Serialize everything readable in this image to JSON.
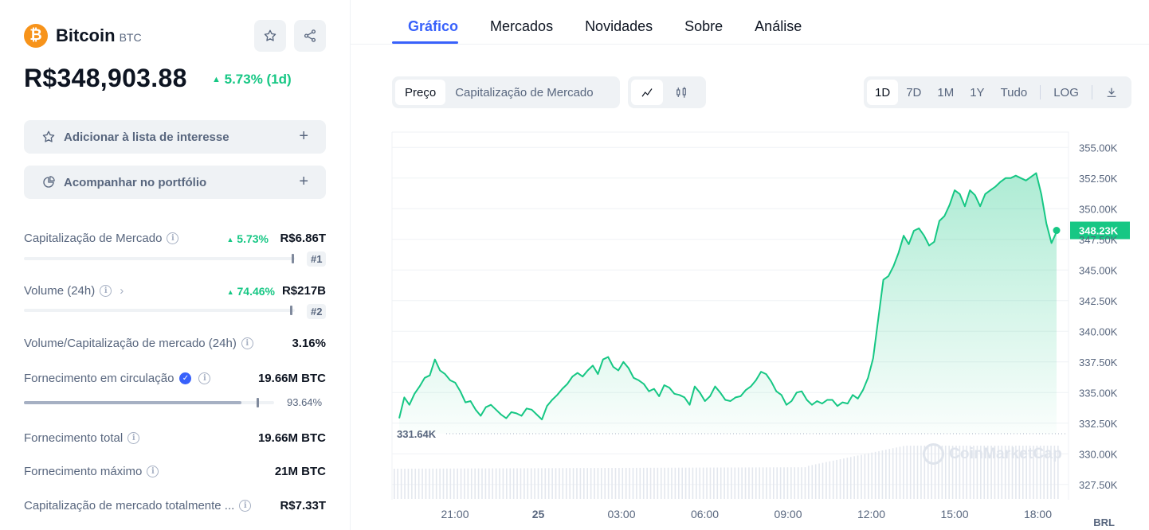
{
  "coin": {
    "name": "Bitcoin",
    "symbol": "BTC",
    "logo_glyph": "₿",
    "price": "R$348,903.88",
    "change": "5.73% (1d)"
  },
  "actions": {
    "watchlist_label": "Adicionar à lista de interesse",
    "portfolio_label": "Acompanhar no portfólio"
  },
  "stats": {
    "market_cap": {
      "label": "Capitalização de Mercado",
      "change": "5.73%",
      "value": "R$6.86T",
      "rank": "#1"
    },
    "volume": {
      "label": "Volume (24h)",
      "change": "74.46%",
      "value": "R$217B",
      "rank": "#2"
    },
    "vol_mcap": {
      "label": "Volume/Capitalização de mercado (24h)",
      "value": "3.16%"
    },
    "circulating": {
      "label": "Fornecimento em circulação",
      "value": "19.66M BTC",
      "percent": "93.64%",
      "fraction": 0.9364
    },
    "total": {
      "label": "Fornecimento total",
      "value": "19.66M BTC"
    },
    "max": {
      "label": "Fornecimento máximo",
      "value": "21M BTC"
    },
    "fdv": {
      "label": "Capitalização de mercado totalmente ...",
      "value": "R$7.33T"
    }
  },
  "tabs": [
    "Gráfico",
    "Mercados",
    "Novidades",
    "Sobre",
    "Análise"
  ],
  "active_tab": "Gráfico",
  "chart_controls": {
    "type_options": [
      "Preço",
      "Capitalização de Mercado"
    ],
    "selected_type": "Preço",
    "ranges": [
      "1D",
      "7D",
      "1M",
      "1Y",
      "Tudo"
    ],
    "selected_range": "1D",
    "log_label": "LOG"
  },
  "watermark": "CoinMarketCap",
  "colors": {
    "up": "#16c784",
    "accent": "#3861fb",
    "btc": "#f7931a"
  },
  "chart_data": {
    "type": "area",
    "currency_label": "BRL",
    "x_tick_labels": [
      "21:00",
      "25",
      "03:00",
      "06:00",
      "09:00",
      "12:00",
      "15:00",
      "18:00"
    ],
    "y_tick_labels": [
      "355.00K",
      "352.50K",
      "350.00K",
      "347.50K",
      "345.00K",
      "342.50K",
      "340.00K",
      "337.50K",
      "335.00K",
      "332.50K",
      "330.00K",
      "327.50K"
    ],
    "ylim": [
      326250,
      356250
    ],
    "open_value": 331640,
    "open_label": "331.64K",
    "current_value": 348230,
    "current_label": "348.23K",
    "series": [
      {
        "values": [
          332900,
          334600,
          334000,
          334900,
          335500,
          336200,
          336400,
          337700,
          336800,
          336500,
          336000,
          335800,
          335100,
          334200,
          334300,
          333600,
          333100,
          333800,
          334000,
          333600,
          333200,
          332900,
          333400,
          333300,
          333100,
          333700,
          333600,
          333200,
          332800,
          333900,
          334400,
          334800,
          335300,
          335700,
          336300,
          336600,
          336300,
          336800,
          337200,
          336500,
          337700,
          337900,
          337100,
          336800,
          337500,
          337000,
          336200,
          336000,
          335700,
          335100,
          335300,
          334700,
          335600,
          335400,
          334900,
          334800,
          334600,
          334000,
          335500,
          335000,
          334300,
          334700,
          335500,
          335000,
          334400,
          334300,
          334600,
          334700,
          335200,
          335500,
          336000,
          336700,
          336500,
          335900,
          335100,
          334800,
          334000,
          334300,
          335000,
          335100,
          334400,
          334000,
          334300,
          334100,
          334400,
          334400,
          333900,
          334200,
          334100,
          334800,
          334500,
          335200,
          336200,
          337800,
          341000,
          344200,
          344500,
          345300,
          346400,
          347800,
          347100,
          348200,
          348400,
          347800,
          347000,
          347300,
          349000,
          349400,
          350300,
          351500,
          351200,
          350200,
          351500,
          351100,
          350200,
          351200,
          351500,
          351800,
          352200,
          352500,
          352500,
          352700,
          352500,
          352300,
          352600,
          352900,
          351200,
          348800,
          347200,
          348100
        ],
        "step_minutes": 11
      }
    ],
    "volume_bars": {
      "count": 190,
      "relative_heights": "flat ~0.6 until 10:00, rising to ~0.75 after 12:00"
    },
    "grid": true
  }
}
